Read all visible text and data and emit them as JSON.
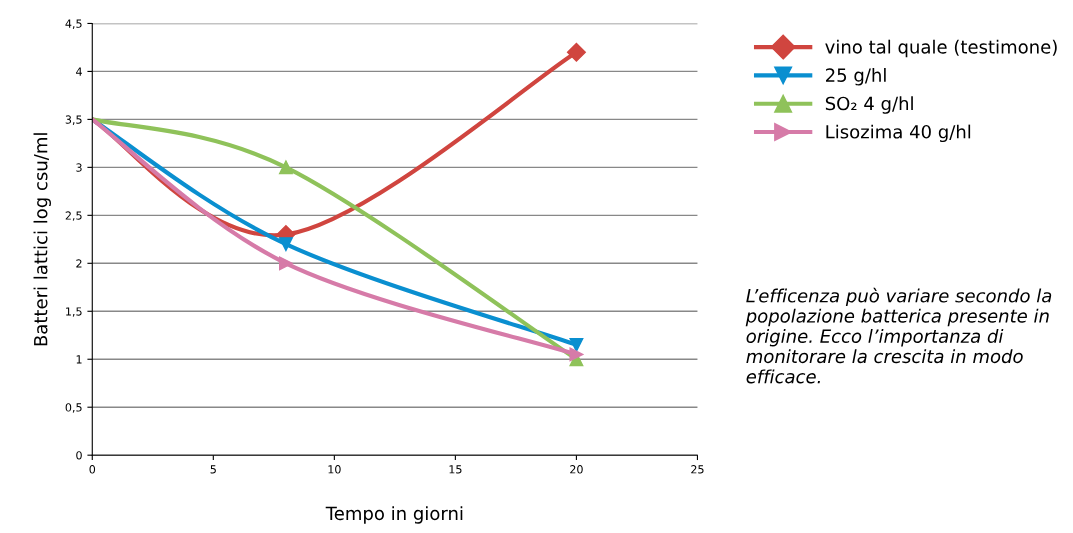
{
  "chart_data": {
    "type": "line",
    "xlabel": "Tempo in giorni",
    "ylabel": "Batteri lattici log csu/ml",
    "x": [
      0,
      8,
      20
    ],
    "series": [
      {
        "name": "vino tal quale (testimone)",
        "color": "#d0453f",
        "marker": "diamond",
        "values": [
          3.5,
          2.3,
          4.2
        ]
      },
      {
        "name": "25 g/hl",
        "color": "#0a8fd0",
        "marker": "triangle_down",
        "values": [
          3.5,
          2.2,
          1.15
        ]
      },
      {
        "name": "SO₂ 4 g/hl",
        "color": "#8fc25a",
        "marker": "triangle",
        "values": [
          3.5,
          3.0,
          1.0
        ]
      },
      {
        "name": "Lisozima 40 g/hl",
        "color": "#d67ba8",
        "marker": "triangle_right",
        "values": [
          3.5,
          2.0,
          1.05
        ]
      }
    ],
    "xlim": [
      0,
      25
    ],
    "xticks": [
      0,
      5,
      10,
      15,
      20,
      25
    ],
    "ylim": [
      0,
      4.5
    ],
    "yticks": [
      {
        "value": 0,
        "label": "0"
      },
      {
        "value": 0.5,
        "label": "0,5"
      },
      {
        "value": 1,
        "label": "1"
      },
      {
        "value": 1.5,
        "label": "1,5"
      },
      {
        "value": 2,
        "label": "2"
      },
      {
        "value": 2.5,
        "label": "2,5"
      },
      {
        "value": 3,
        "label": "3"
      },
      {
        "value": 3.5,
        "label": "3,5"
      },
      {
        "value": 4,
        "label": "4"
      },
      {
        "value": 4.5,
        "label": "4,5"
      }
    ],
    "grid": "y",
    "legend": "right",
    "annotations": [
      "L’efficenza può variare secondo la popolazione batterica presente in origine. Ecco l’importanza di monitorare la crescita in modo efficace."
    ]
  }
}
